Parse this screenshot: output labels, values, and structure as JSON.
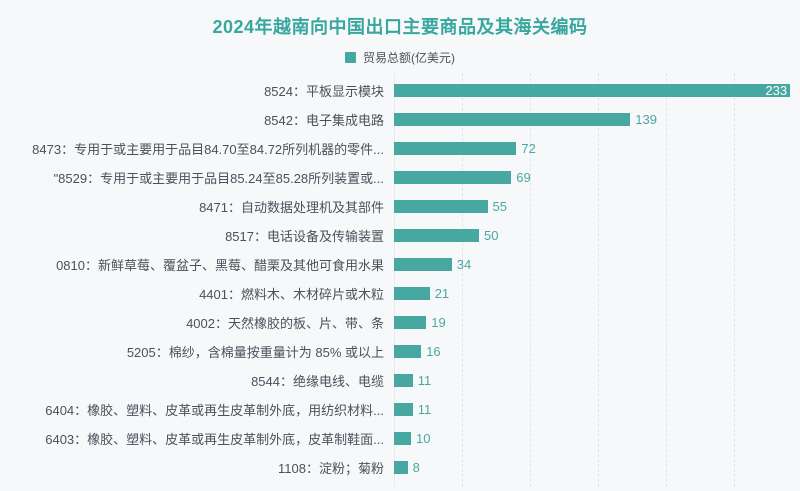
{
  "title": "2024年越南向中国出口主要商品及其海关编码",
  "legend": {
    "label": "贸易总额(亿美元)",
    "swatch_color": "#42a8a0"
  },
  "colors": {
    "background": "#f7f8fa",
    "bar": "#46a8a1",
    "title": "#38a79e",
    "text": "#4c505b",
    "gridline": "#e2e4eb",
    "value_label": "#4aa8a1",
    "value_label_inside": "#ffffff"
  },
  "chart_data": {
    "type": "bar",
    "orientation": "horizontal",
    "title": "2024年越南向中国出口主要商品及其海关编码",
    "series_name": "贸易总额(亿美元)",
    "categories": [
      "8524：平板显示模块",
      "8542：电子集成电路",
      "8473：专用于或主要用于品目84.70至84.72所列机器的零件...",
      "\"8529：专用于或主要用于品目85.24至85.28所列装置或...",
      "8471：自动数据处理机及其部件",
      "8517：电话设备及传输装置",
      "0810：新鲜草莓、覆盆子、黑莓、醋栗及其他可食用水果",
      "4401：燃料木、木材碎片或木粒",
      "4002：天然橡胶的板、片、带、条",
      "5205：棉纱，含棉量按重量计为 85% 或以上",
      "8544：绝缘电线、电缆",
      "6404：橡胶、塑料、皮革或再生皮革制外底，用纺织材料...",
      "6403：橡胶、塑料、皮革或再生皮革制外底，皮革制鞋面...",
      "1108：淀粉；菊粉"
    ],
    "values": [
      233,
      139,
      72,
      69,
      55,
      50,
      34,
      21,
      19,
      16,
      11,
      11,
      10,
      8
    ],
    "xlabel": "",
    "ylabel": "",
    "xlim": [
      0,
      240
    ],
    "gridline_values": [
      40,
      80,
      120,
      160,
      200
    ],
    "grid": "vertical-dashed",
    "legend_position": "top-center",
    "value_labels": "shown-at-bar-end"
  }
}
